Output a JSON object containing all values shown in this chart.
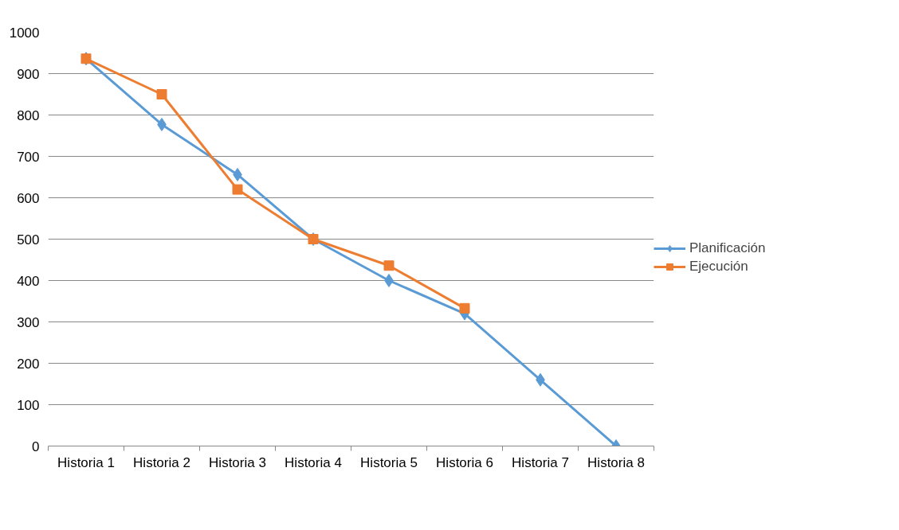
{
  "chart_data": {
    "type": "line",
    "categories": [
      "Historia 1",
      "Historia 2",
      "Historia 3",
      "Historia 4",
      "Historia 5",
      "Historia 6",
      "Historia 7",
      "Historia 8"
    ],
    "series": [
      {
        "name": "Planificación",
        "color": "#5b9bd5",
        "marker": "diamond",
        "values": [
          936,
          777,
          656,
          500,
          400,
          320,
          160,
          0
        ]
      },
      {
        "name": "Ejecución",
        "color": "#ed7d31",
        "marker": "square",
        "values": [
          936,
          850,
          620,
          500,
          436,
          333,
          null,
          null
        ]
      }
    ],
    "ylim": [
      0,
      1000
    ],
    "yticks": [
      0,
      100,
      200,
      300,
      400,
      500,
      600,
      700,
      800,
      900,
      1000
    ],
    "grid": "y",
    "legend": "right",
    "line_style": "solid"
  }
}
